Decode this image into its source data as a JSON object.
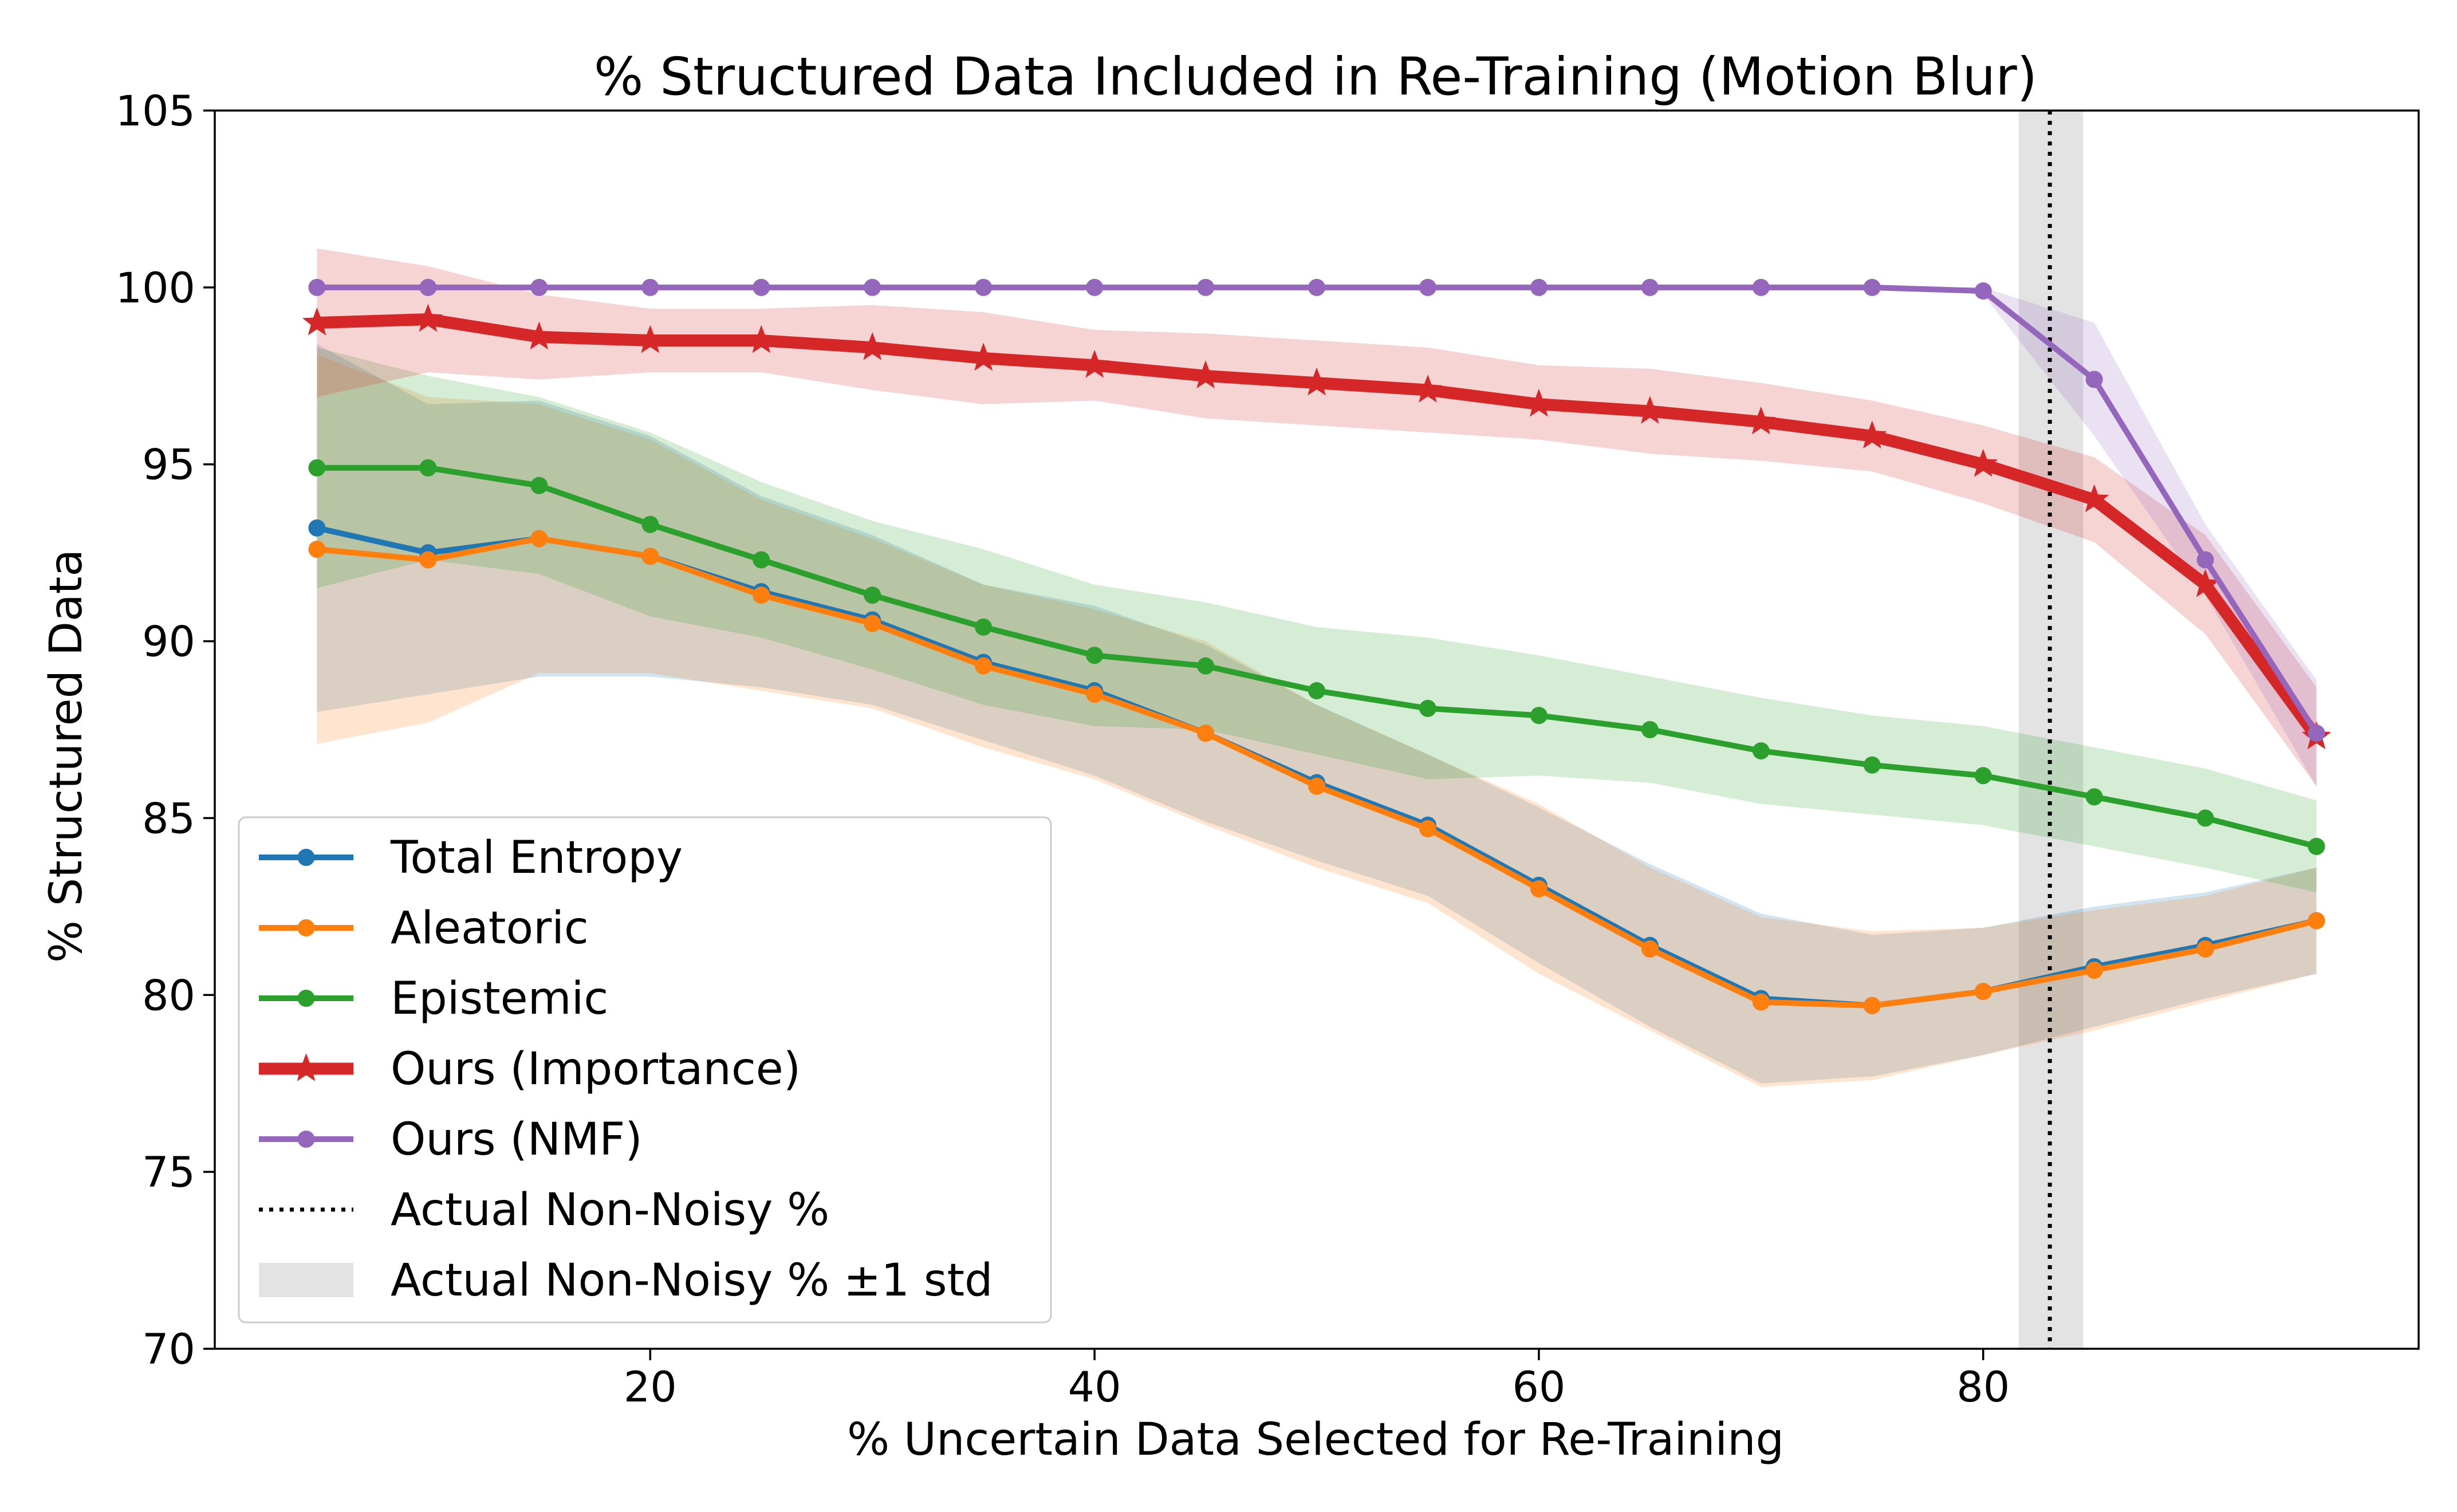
{
  "chart_data": {
    "type": "line",
    "title": "% Structured Data Included in Re-Training (Motion Blur)",
    "xlabel": "% Uncertain Data Selected for Re-Training",
    "ylabel": "% Structured Data",
    "xlim": [
      0.4,
      99.6
    ],
    "ylim": [
      70,
      105
    ],
    "xticks": [
      20,
      40,
      60,
      80
    ],
    "yticks": [
      70,
      75,
      80,
      85,
      90,
      95,
      100,
      105
    ],
    "grid": false,
    "legend_position": "lower-left",
    "x": [
      5,
      10,
      15,
      20,
      25,
      30,
      35,
      40,
      45,
      50,
      55,
      60,
      65,
      70,
      75,
      80,
      85,
      90,
      95
    ],
    "series": [
      {
        "name": "Total Entropy",
        "color": "#1f77b4",
        "marker": "circle",
        "values": [
          93.2,
          92.5,
          92.9,
          92.4,
          91.4,
          90.6,
          89.4,
          88.6,
          87.4,
          86.0,
          84.8,
          83.1,
          81.4,
          79.9,
          79.7,
          80.1,
          80.8,
          81.4,
          82.1
        ],
        "lower": [
          88.0,
          88.5,
          89.0,
          89.0,
          88.7,
          88.2,
          87.2,
          86.2,
          84.9,
          83.8,
          82.8,
          80.9,
          79.1,
          77.5,
          77.7,
          78.3,
          79.1,
          79.9,
          80.6
        ],
        "upper": [
          98.4,
          96.7,
          96.8,
          95.8,
          94.1,
          93.0,
          91.6,
          91.0,
          89.9,
          88.2,
          86.8,
          85.3,
          83.7,
          82.3,
          81.7,
          81.9,
          82.5,
          82.9,
          83.6
        ]
      },
      {
        "name": "Aleatoric",
        "color": "#ff7f0e",
        "marker": "circle",
        "values": [
          92.6,
          92.3,
          92.9,
          92.4,
          91.3,
          90.5,
          89.3,
          88.5,
          87.4,
          85.9,
          84.7,
          83.0,
          81.3,
          79.8,
          79.7,
          80.1,
          80.7,
          81.3,
          82.1
        ],
        "lower": [
          87.1,
          87.7,
          89.1,
          89.1,
          88.6,
          88.1,
          87.0,
          86.1,
          84.8,
          83.6,
          82.6,
          80.6,
          79.0,
          77.4,
          77.6,
          78.3,
          79.0,
          79.8,
          80.6
        ],
        "upper": [
          98.1,
          96.9,
          96.7,
          95.7,
          94.0,
          92.9,
          91.6,
          90.9,
          90.0,
          88.2,
          86.8,
          85.4,
          83.6,
          82.2,
          81.8,
          81.9,
          82.4,
          82.8,
          83.6
        ]
      },
      {
        "name": "Epistemic",
        "color": "#2ca02c",
        "marker": "circle",
        "values": [
          94.9,
          94.9,
          94.4,
          93.3,
          92.3,
          91.3,
          90.4,
          89.6,
          89.3,
          88.6,
          88.1,
          87.9,
          87.5,
          86.9,
          86.5,
          86.2,
          85.6,
          85.0,
          84.2
        ],
        "lower": [
          91.5,
          92.3,
          91.9,
          90.7,
          90.1,
          89.2,
          88.2,
          87.6,
          87.5,
          86.8,
          86.1,
          86.2,
          86.0,
          85.4,
          85.1,
          84.8,
          84.2,
          83.6,
          82.9
        ],
        "upper": [
          98.3,
          97.5,
          96.9,
          95.9,
          94.5,
          93.4,
          92.6,
          91.6,
          91.1,
          90.4,
          90.1,
          89.6,
          89.0,
          88.4,
          87.9,
          87.6,
          87.0,
          86.4,
          85.5
        ]
      },
      {
        "name": "Ours (Importance)",
        "color": "#d62728",
        "marker": "star",
        "values": [
          99.0,
          99.1,
          98.6,
          98.5,
          98.5,
          98.3,
          98.0,
          97.8,
          97.5,
          97.3,
          97.1,
          96.7,
          96.5,
          96.2,
          95.8,
          95.0,
          94.0,
          91.6,
          87.3
        ],
        "lower": [
          96.9,
          97.6,
          97.4,
          97.6,
          97.6,
          97.1,
          96.7,
          96.8,
          96.3,
          96.1,
          95.9,
          95.7,
          95.3,
          95.1,
          94.8,
          93.9,
          92.8,
          90.2,
          85.9
        ],
        "upper": [
          101.1,
          100.6,
          99.8,
          99.4,
          99.4,
          99.5,
          99.3,
          98.8,
          98.7,
          98.5,
          98.3,
          97.8,
          97.7,
          97.3,
          96.8,
          96.1,
          95.2,
          93.0,
          88.7
        ]
      },
      {
        "name": "Ours (NMF)",
        "color": "#9467bd",
        "marker": "circle",
        "values": [
          100.0,
          100.0,
          100.0,
          100.0,
          100.0,
          100.0,
          100.0,
          100.0,
          100.0,
          100.0,
          100.0,
          100.0,
          100.0,
          100.0,
          100.0,
          99.9,
          97.4,
          92.3,
          87.4
        ],
        "lower": [
          100.0,
          100.0,
          100.0,
          100.0,
          100.0,
          100.0,
          100.0,
          100.0,
          100.0,
          100.0,
          100.0,
          100.0,
          100.0,
          100.0,
          100.0,
          99.8,
          95.8,
          91.3,
          85.9
        ],
        "upper": [
          100.0,
          100.0,
          100.0,
          100.0,
          100.0,
          100.0,
          100.0,
          100.0,
          100.0,
          100.0,
          100.0,
          100.0,
          100.0,
          100.0,
          100.0,
          100.0,
          99.0,
          93.3,
          88.9
        ]
      }
    ],
    "reference": {
      "name": "Actual Non-Noisy %",
      "x": 83.0,
      "color": "#000000",
      "style": "dotted",
      "band": {
        "name": "Actual Non-Noisy % ±1 std",
        "lower": 81.6,
        "upper": 84.5,
        "color": "#cccccc"
      }
    }
  }
}
